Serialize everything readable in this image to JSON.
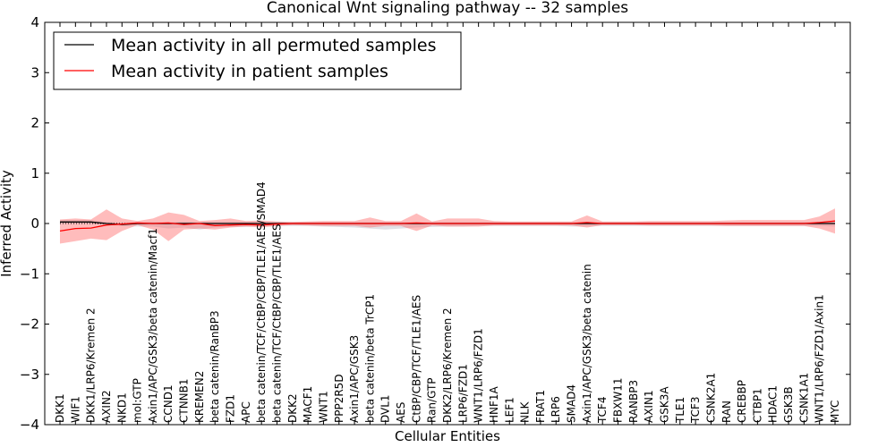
{
  "chart_data": {
    "type": "line",
    "title": "Canonical Wnt signaling pathway -- 32 samples",
    "xlabel": "Cellular Entities",
    "ylabel": "Inferred Activity",
    "ylim": [
      -4,
      4
    ],
    "yticks": [
      -4,
      -3,
      -2,
      -1,
      0,
      1,
      2,
      3,
      4
    ],
    "ytick_labels": [
      "−4",
      "−3",
      "−2",
      "−1",
      "0",
      "1",
      "2",
      "3",
      "4"
    ],
    "legend": {
      "position": "top-left",
      "entries": [
        {
          "label": "Mean activity in all permuted samples",
          "color": "#000000"
        },
        {
          "label": "Mean activity in patient samples",
          "color": "#ff0000"
        }
      ]
    },
    "categories": [
      "DKK1",
      "WIF1",
      "DKK1/LRP6/Kremen 2",
      "AXIN2",
      "NKD1",
      "mol:GTP",
      "Axin1/APC/GSK3/beta catenin/Macf1",
      "CCND1",
      "CTNNB1",
      "KREMEN2",
      "beta catenin/RanBP3",
      "FZD1",
      "APC",
      "beta catenin/TCF/CtBP/CBP/TLE1/AES/SMAD4",
      "beta catenin/TCF/CtBP/CBP/TLE1/AES",
      "DKK2",
      "MACF1",
      "WNT1",
      "PPP2R5D",
      "Axin1/APC/GSK3",
      "beta catenin/beta TrCP1",
      "DVL1",
      "AES",
      "CtBP/CBP/TCF/TLE1/AES",
      "Ran/GTP",
      "DKK2/LRP6/Kremen 2",
      "LRP6/FZD1",
      "WNT1/LRP6/FZD1",
      "HNF1A",
      "LEF1",
      "NLK",
      "FRAT1",
      "LRP6",
      "SMAD4",
      "Axin1/APC/GSK3/beta catenin",
      "TCF4",
      "FBXW11",
      "RANBP3",
      "AXIN1",
      "GSK3A",
      "TLE1",
      "TCF3",
      "CSNK2A1",
      "RAN",
      "CREBBP",
      "CTBP1",
      "HDAC1",
      "GSK3B",
      "CSNK1A1",
      "WNT1/LRP6/FZD1/Axin1",
      "MYC"
    ],
    "series": [
      {
        "name": "Mean activity in all permuted samples",
        "color": "#000000",
        "values": [
          0.03,
          0.03,
          0.03,
          0.0,
          -0.02,
          0.0,
          0.0,
          0.0,
          0.0,
          0.0,
          0.0,
          0.0,
          0.0,
          0.0,
          0.0,
          0.0,
          0.0,
          0.0,
          0.0,
          0.0,
          0.0,
          0.0,
          0.0,
          0.0,
          0.0,
          0.0,
          0.0,
          0.0,
          0.0,
          0.0,
          0.0,
          0.0,
          0.0,
          0.0,
          0.0,
          0.0,
          0.0,
          0.0,
          0.0,
          0.0,
          0.0,
          0.0,
          0.0,
          0.0,
          0.0,
          0.0,
          0.0,
          0.0,
          0.0,
          0.0,
          0.0
        ],
        "band_upper": [
          0.07,
          0.07,
          0.07,
          0.03,
          0.02,
          0.03,
          0.03,
          0.03,
          0.03,
          0.03,
          0.03,
          0.03,
          0.03,
          0.03,
          0.03,
          0.03,
          0.03,
          0.03,
          0.03,
          0.03,
          0.03,
          0.03,
          0.03,
          0.03,
          0.03,
          0.03,
          0.03,
          0.03,
          0.03,
          0.03,
          0.03,
          0.03,
          0.03,
          0.03,
          0.03,
          0.03,
          0.03,
          0.03,
          0.03,
          0.03,
          0.03,
          0.03,
          0.03,
          0.03,
          0.03,
          0.03,
          0.03,
          0.03,
          0.03,
          0.03,
          0.03
        ],
        "band_lower": [
          0.0,
          0.0,
          0.0,
          -0.03,
          -0.05,
          -0.06,
          -0.06,
          -0.1,
          -0.08,
          -0.12,
          -0.08,
          -0.07,
          -0.07,
          -0.05,
          -0.05,
          -0.05,
          -0.05,
          -0.06,
          -0.07,
          -0.08,
          -0.1,
          -0.12,
          -0.1,
          -0.08,
          -0.07,
          -0.06,
          -0.06,
          -0.05,
          -0.05,
          -0.05,
          -0.05,
          -0.05,
          -0.05,
          -0.06,
          -0.06,
          -0.05,
          -0.05,
          -0.05,
          -0.05,
          -0.05,
          -0.05,
          -0.05,
          -0.05,
          -0.05,
          -0.05,
          -0.05,
          -0.05,
          -0.05,
          -0.05,
          -0.05,
          -0.06
        ]
      },
      {
        "name": "Mean activity in patient samples",
        "color": "#ff0000",
        "values": [
          -0.15,
          -0.1,
          -0.09,
          -0.03,
          -0.01,
          0.01,
          0.0,
          0.01,
          -0.02,
          0.0,
          -0.04,
          -0.03,
          -0.02,
          -0.03,
          -0.01,
          0.0,
          0.0,
          0.0,
          0.0,
          0.0,
          0.0,
          0.0,
          0.0,
          0.01,
          0.0,
          0.0,
          0.0,
          0.0,
          0.0,
          0.0,
          0.0,
          0.0,
          0.0,
          0.0,
          0.02,
          0.0,
          0.0,
          0.0,
          0.0,
          0.0,
          0.0,
          0.0,
          0.0,
          0.0,
          0.0,
          0.0,
          0.0,
          0.0,
          0.0,
          0.02,
          0.05
        ],
        "band_upper": [
          0.08,
          0.1,
          0.08,
          0.28,
          0.1,
          0.05,
          0.1,
          0.22,
          0.17,
          0.05,
          0.07,
          0.1,
          0.05,
          0.06,
          0.04,
          0.03,
          0.04,
          0.05,
          0.05,
          0.05,
          0.12,
          0.05,
          0.05,
          0.2,
          0.04,
          0.1,
          0.1,
          0.1,
          0.05,
          0.04,
          0.04,
          0.04,
          0.04,
          0.04,
          0.16,
          0.04,
          0.04,
          0.04,
          0.05,
          0.05,
          0.05,
          0.05,
          0.05,
          0.06,
          0.07,
          0.07,
          0.07,
          0.07,
          0.07,
          0.14,
          0.3
        ],
        "band_lower": [
          -0.4,
          -0.35,
          -0.3,
          -0.33,
          -0.15,
          -0.03,
          -0.12,
          -0.35,
          -0.12,
          -0.1,
          -0.12,
          -0.08,
          -0.06,
          -0.08,
          -0.05,
          -0.03,
          -0.04,
          -0.05,
          -0.05,
          -0.05,
          -0.08,
          -0.05,
          -0.05,
          -0.15,
          -0.04,
          -0.06,
          -0.06,
          -0.06,
          -0.04,
          -0.04,
          -0.04,
          -0.04,
          -0.04,
          -0.04,
          -0.08,
          -0.03,
          -0.03,
          -0.03,
          -0.04,
          -0.04,
          -0.04,
          -0.04,
          -0.04,
          -0.05,
          -0.05,
          -0.05,
          -0.05,
          -0.05,
          -0.05,
          -0.1,
          -0.2
        ]
      }
    ]
  }
}
